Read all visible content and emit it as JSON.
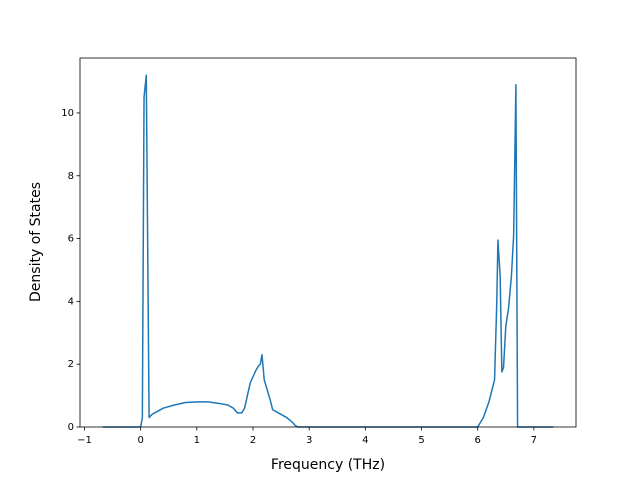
{
  "chart_data": {
    "type": "line",
    "xlabel": "Frequency (THz)",
    "ylabel": "Density of States",
    "xlim": [
      -1.08,
      7.75
    ],
    "ylim": [
      0,
      11.75
    ],
    "xticks": [
      {
        "value": -1,
        "label": "−1"
      },
      0,
      1,
      2,
      3,
      4,
      5,
      6,
      7
    ],
    "yticks": [
      0,
      2,
      4,
      6,
      8,
      10
    ],
    "grid": false,
    "series": [
      {
        "color": "#1f77b4",
        "x": [
          -0.68,
          0,
          0.03,
          0.06,
          0.1,
          0.15,
          0.2,
          0.3,
          0.4,
          0.6,
          0.8,
          1.0,
          1.2,
          1.4,
          1.55,
          1.65,
          1.72,
          1.8,
          1.85,
          1.9,
          1.95,
          2.05,
          2.1,
          2.13,
          2.16,
          2.2,
          2.3,
          2.35,
          2.5,
          2.6,
          2.7,
          2.75,
          2.8,
          6.0,
          6.1,
          6.2,
          6.3,
          6.34,
          6.36,
          6.4,
          6.43,
          6.46,
          6.5,
          6.55,
          6.6,
          6.64,
          6.68,
          6.71,
          7.35
        ],
        "values": [
          0,
          0,
          0.3,
          10.5,
          11.2,
          0.3,
          0.4,
          0.5,
          0.6,
          0.7,
          0.78,
          0.8,
          0.8,
          0.75,
          0.7,
          0.6,
          0.45,
          0.45,
          0.6,
          1.0,
          1.4,
          1.8,
          1.95,
          2.0,
          2.3,
          1.5,
          0.9,
          0.55,
          0.4,
          0.3,
          0.15,
          0.05,
          0,
          0,
          0.3,
          0.8,
          1.5,
          4.0,
          5.95,
          4.8,
          1.75,
          1.9,
          3.2,
          3.8,
          4.8,
          6.1,
          10.9,
          0,
          0
        ]
      }
    ]
  }
}
